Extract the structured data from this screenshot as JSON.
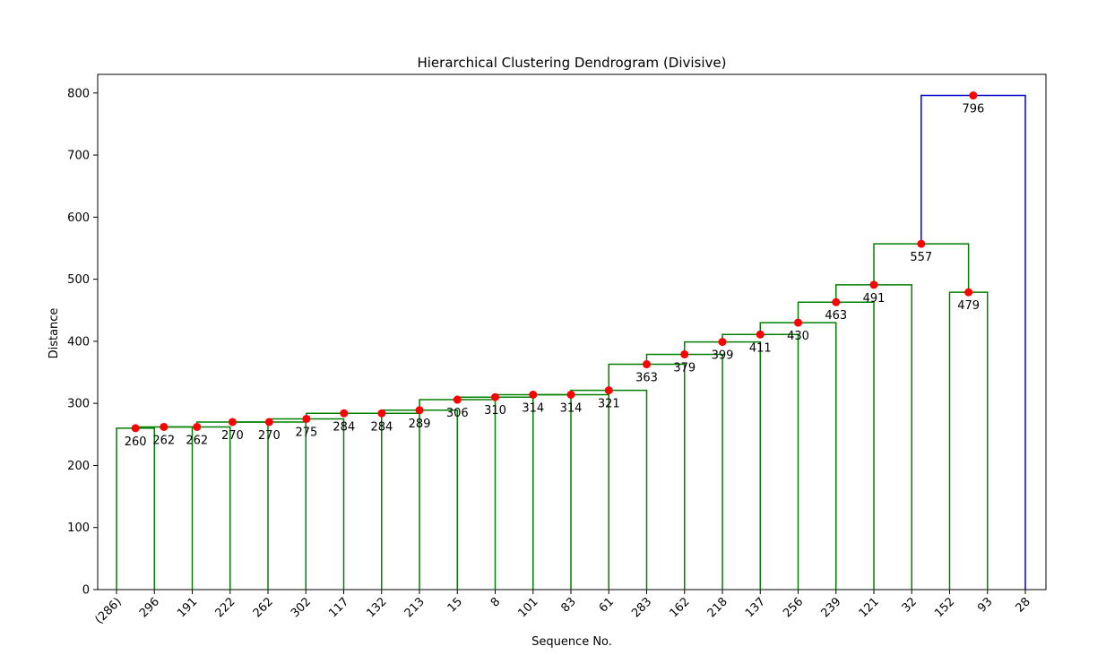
{
  "chart_data": {
    "type": "dendrogram",
    "title": "Hierarchical Clustering Dendrogram (Divisive)",
    "xlabel": "Sequence No.",
    "ylabel": "Distance",
    "ylim": [
      0,
      830
    ],
    "yticks": [
      0,
      100,
      200,
      300,
      400,
      500,
      600,
      700,
      800
    ],
    "leaves": [
      "(286)",
      "296",
      "191",
      "222",
      "262",
      "302",
      "117",
      "132",
      "213",
      "15",
      "8",
      "101",
      "83",
      "61",
      "283",
      "162",
      "218",
      "137",
      "256",
      "239",
      "121",
      "32",
      "152",
      "93",
      "28"
    ],
    "merges": [
      {
        "id": "m1",
        "children": [
          "L0",
          "L1"
        ],
        "distance": 260,
        "color": "#008000"
      },
      {
        "id": "m2",
        "children": [
          "m1",
          "L2"
        ],
        "distance": 262,
        "color": "#008000"
      },
      {
        "id": "m3",
        "children": [
          "m2",
          "L3"
        ],
        "distance": 262,
        "color": "#008000"
      },
      {
        "id": "m4",
        "children": [
          "m3",
          "L4"
        ],
        "distance": 270,
        "color": "#008000"
      },
      {
        "id": "m5",
        "children": [
          "m4",
          "L5"
        ],
        "distance": 270,
        "color": "#008000"
      },
      {
        "id": "m6",
        "children": [
          "m5",
          "L6"
        ],
        "distance": 275,
        "color": "#008000"
      },
      {
        "id": "m7",
        "children": [
          "m6",
          "L7"
        ],
        "distance": 284,
        "color": "#008000"
      },
      {
        "id": "m8",
        "children": [
          "m7",
          "L8"
        ],
        "distance": 284,
        "color": "#008000"
      },
      {
        "id": "m9",
        "children": [
          "m8",
          "L9"
        ],
        "distance": 289,
        "color": "#008000"
      },
      {
        "id": "m10",
        "children": [
          "m9",
          "L10"
        ],
        "distance": 306,
        "color": "#008000"
      },
      {
        "id": "m11",
        "children": [
          "m10",
          "L11"
        ],
        "distance": 310,
        "color": "#008000"
      },
      {
        "id": "m12",
        "children": [
          "m11",
          "L12"
        ],
        "distance": 314,
        "color": "#008000"
      },
      {
        "id": "m13",
        "children": [
          "m12",
          "L13"
        ],
        "distance": 314,
        "color": "#008000"
      },
      {
        "id": "m14",
        "children": [
          "m13",
          "L14"
        ],
        "distance": 321,
        "color": "#008000"
      },
      {
        "id": "m15",
        "children": [
          "m14",
          "L15"
        ],
        "distance": 363,
        "color": "#008000"
      },
      {
        "id": "m16",
        "children": [
          "m15",
          "L16"
        ],
        "distance": 379,
        "color": "#008000"
      },
      {
        "id": "m17",
        "children": [
          "m16",
          "L17"
        ],
        "distance": 399,
        "color": "#008000"
      },
      {
        "id": "m18",
        "children": [
          "m17",
          "L18"
        ],
        "distance": 411,
        "color": "#008000"
      },
      {
        "id": "m19",
        "children": [
          "m18",
          "L19"
        ],
        "distance": 430,
        "color": "#008000"
      },
      {
        "id": "m20",
        "children": [
          "m19",
          "L20"
        ],
        "distance": 463,
        "color": "#008000"
      },
      {
        "id": "m21",
        "children": [
          "m20",
          "L21"
        ],
        "distance": 491,
        "color": "#008000"
      },
      {
        "id": "m22",
        "children": [
          "L22",
          "L23"
        ],
        "distance": 479,
        "color": "#008000"
      },
      {
        "id": "m23",
        "children": [
          "m21",
          "m22"
        ],
        "distance": 557,
        "color": "#008000"
      },
      {
        "id": "m24",
        "children": [
          "m23",
          "L24"
        ],
        "distance": 796,
        "color": "#0000cc"
      }
    ],
    "node_labels": [
      {
        "merge": "m1",
        "text": "260"
      },
      {
        "merge": "m2",
        "text": "262"
      },
      {
        "merge": "m3",
        "text": "262"
      },
      {
        "merge": "m4",
        "text": "270"
      },
      {
        "merge": "m5",
        "text": "270"
      },
      {
        "merge": "m6",
        "text": "275"
      },
      {
        "merge": "m7",
        "text": "284"
      },
      {
        "merge": "m8",
        "text": "284"
      },
      {
        "merge": "m9",
        "text": "289"
      },
      {
        "merge": "m10",
        "text": "306"
      },
      {
        "merge": "m11",
        "text": "310"
      },
      {
        "merge": "m12",
        "text": "314"
      },
      {
        "merge": "m13",
        "text": "314"
      },
      {
        "merge": "m14",
        "text": "321"
      },
      {
        "merge": "m15",
        "text": "363"
      },
      {
        "merge": "m16",
        "text": "379"
      },
      {
        "merge": "m17",
        "text": "399"
      },
      {
        "merge": "m18",
        "text": "411"
      },
      {
        "merge": "m19",
        "text": "430"
      },
      {
        "merge": "m20",
        "text": "463"
      },
      {
        "merge": "m21",
        "text": "491"
      },
      {
        "merge": "m22",
        "text": "479"
      },
      {
        "merge": "m23",
        "text": "557"
      },
      {
        "merge": "m24",
        "text": "796"
      }
    ],
    "marker_color": "#ff0000",
    "grid": false,
    "legend": "none"
  }
}
